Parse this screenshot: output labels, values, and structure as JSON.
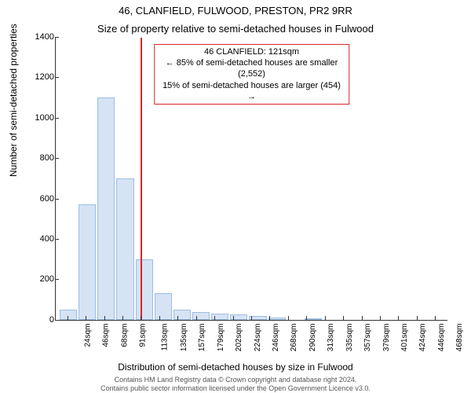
{
  "title_line1": "46, CLANFIELD, FULWOOD, PRESTON, PR2 9RR",
  "title_line2": "Size of property relative to semi-detached houses in Fulwood",
  "y_label": "Number of semi-detached properties",
  "x_label": "Distribution of semi-detached houses by size in Fulwood",
  "chart": {
    "type": "histogram",
    "bar_fill": "#d6e3f5",
    "bar_stroke": "#9dbde0",
    "ymax": 1400,
    "ytick_step": 200,
    "bins": [
      {
        "label": "24sqm",
        "value": 50
      },
      {
        "label": "46sqm",
        "value": 570
      },
      {
        "label": "68sqm",
        "value": 1100
      },
      {
        "label": "91sqm",
        "value": 700
      },
      {
        "label": "113sqm",
        "value": 300
      },
      {
        "label": "135sqm",
        "value": 130
      },
      {
        "label": "157sqm",
        "value": 50
      },
      {
        "label": "179sqm",
        "value": 40
      },
      {
        "label": "202sqm",
        "value": 30
      },
      {
        "label": "224sqm",
        "value": 25
      },
      {
        "label": "246sqm",
        "value": 20
      },
      {
        "label": "268sqm",
        "value": 10
      },
      {
        "label": "290sqm",
        "value": 0
      },
      {
        "label": "313sqm",
        "value": 8
      },
      {
        "label": "335sqm",
        "value": 0
      },
      {
        "label": "357sqm",
        "value": 0
      },
      {
        "label": "379sqm",
        "value": 0
      },
      {
        "label": "401sqm",
        "value": 0
      },
      {
        "label": "424sqm",
        "value": 0
      },
      {
        "label": "446sqm",
        "value": 0
      },
      {
        "label": "468sqm",
        "value": 0
      }
    ],
    "marker": {
      "color": "#d62728",
      "fraction": 0.215
    },
    "info_box": {
      "border_color": "#d62728",
      "line1": "46 CLANFIELD: 121sqm",
      "line2": "← 85% of semi-detached houses are smaller (2,552)",
      "line3": "15% of semi-detached houses are larger (454) →"
    }
  },
  "footer_line1": "Contains HM Land Registry data © Crown copyright and database right 2024.",
  "footer_line2": "Contains public sector information licensed under the Open Government Licence v3.0."
}
